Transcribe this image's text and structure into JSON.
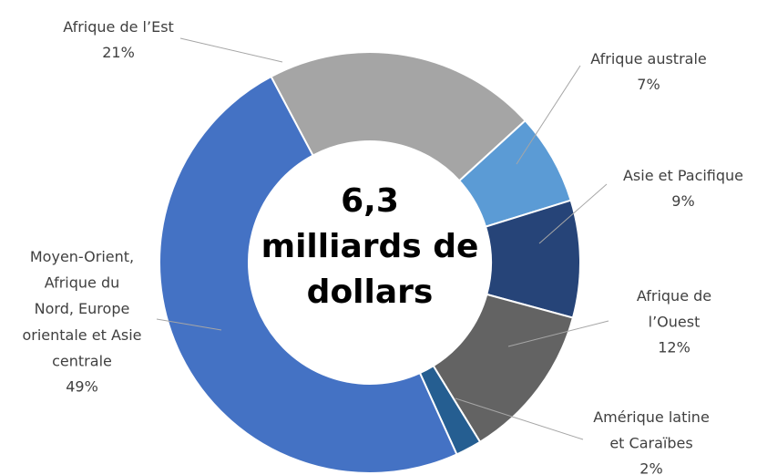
{
  "chart_data": {
    "type": "donut",
    "center_label": [
      "6,3",
      "milliards de",
      "dollars"
    ],
    "categories": [
      "Afrique de l’Est",
      "Afrique australe",
      "Asie et Pacifique",
      "Afrique de\nl’Ouest",
      "Amérique latine\net Caraïbes",
      "Moyen-Orient,\nAfrique du\nNord, Europe\norientale et Asie\ncentrale"
    ],
    "values": [
      21,
      7,
      9,
      12,
      2,
      49
    ],
    "value_labels": [
      "21%",
      "7%",
      "9%",
      "12%",
      "2%",
      "49%"
    ],
    "colors": [
      "#a5a5a5",
      "#5b9bd5",
      "#264478",
      "#636363",
      "#255e91",
      "#4472c4"
    ]
  }
}
